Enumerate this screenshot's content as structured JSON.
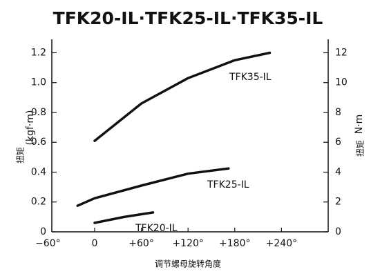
{
  "chart_data": {
    "type": "line",
    "title": "TFK20-IL·TFK25-IL·TFK35-IL",
    "x_label": "调节螺母旋转角度",
    "y_label": "扭矩",
    "y_unit": "(kgf·m)",
    "y2_label": "扭矩",
    "y2_unit": "N·m",
    "xlim": [
      -55,
      300
    ],
    "xticks": [
      {
        "value": -60,
        "label": "−60°"
      },
      0,
      {
        "value": 60,
        "label": "+60°"
      },
      {
        "value": 120,
        "label": "+120°"
      },
      {
        "value": 180,
        "label": "+180°"
      },
      {
        "value": 240,
        "label": "+240°"
      }
    ],
    "ylim": [
      0,
      1.29
    ],
    "yticks": [
      0,
      0.2,
      0.4,
      0.6,
      0.8,
      {
        "value": 1.0,
        "label": "1.0"
      },
      1.2
    ],
    "y2lim": [
      0,
      12.9
    ],
    "y2ticks": [
      0,
      2,
      4,
      6,
      8,
      10,
      12
    ],
    "series": [
      {
        "name": "TFK35-IL",
        "color": "#111111",
        "x": [
          0,
          60,
          120,
          180,
          225
        ],
        "values": [
          0.61,
          0.86,
          1.03,
          1.15,
          1.2
        ]
      },
      {
        "name": "TFK25-IL",
        "color": "#111111",
        "x": [
          -22,
          0,
          60,
          120,
          172
        ],
        "values": [
          0.175,
          0.225,
          0.31,
          0.39,
          0.425
        ]
      },
      {
        "name": "TFK20-IL",
        "color": "#111111",
        "x": [
          0,
          38,
          75
        ],
        "values": [
          0.06,
          0.1,
          0.13
        ]
      }
    ]
  }
}
